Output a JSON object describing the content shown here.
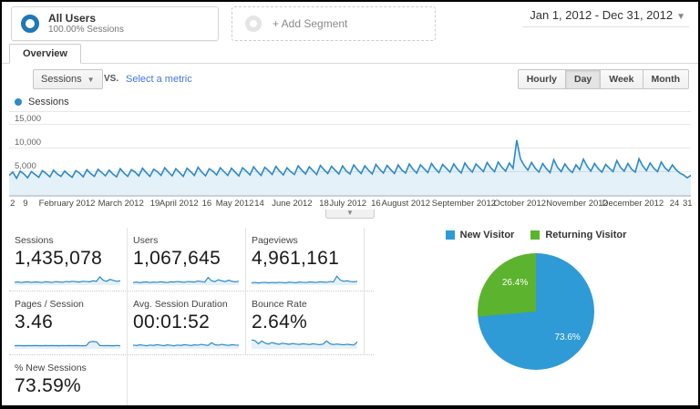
{
  "header": {
    "segment": {
      "title": "All Users",
      "subtitle": "100.00% Sessions"
    },
    "add_segment_label": "+ Add Segment",
    "date_range": "Jan 1, 2012 - Dec 31, 2012"
  },
  "tabs": {
    "overview": "Overview"
  },
  "controls": {
    "metric_selector": "Sessions",
    "vs_label": "VS.",
    "compare_link": "Select a metric",
    "granularity": [
      "Hourly",
      "Day",
      "Week",
      "Month"
    ],
    "granularity_active": "Day"
  },
  "legend": {
    "series_label": "Sessions"
  },
  "colors": {
    "line_blue": "#2d89c8",
    "pie_blue": "#2e9bd6",
    "pie_green": "#5cb32e",
    "link_blue": "#4374e0"
  },
  "chart_data": {
    "timeline": {
      "type": "line",
      "title": "Sessions",
      "granularity": "Day",
      "y_ticks": [
        "15,000",
        "10,000",
        "5,000"
      ],
      "ylim": [
        0,
        17400
      ],
      "x_range": [
        "Jan 1, 2012",
        "Dec 31, 2012"
      ],
      "x_labels": [
        {
          "t": "2",
          "p": 0.5
        },
        {
          "t": "9",
          "p": 2.4
        },
        {
          "t": "February 2012",
          "p": 8.5
        },
        {
          "t": "March 2012",
          "p": 16.4
        },
        {
          "t": "19",
          "p": 21.4
        },
        {
          "t": "April 2012",
          "p": 24.9
        },
        {
          "t": "16",
          "p": 29.0
        },
        {
          "t": "May 2012",
          "p": 33.1
        },
        {
          "t": "14",
          "p": 36.7
        },
        {
          "t": "June 2012",
          "p": 41.5
        },
        {
          "t": "18",
          "p": 46.2
        },
        {
          "t": "July 2012",
          "p": 49.7
        },
        {
          "t": "16",
          "p": 53.8
        },
        {
          "t": "August 2012",
          "p": 58.2
        },
        {
          "t": "September 2012",
          "p": 66.7
        },
        {
          "t": "October 2012",
          "p": 74.9
        },
        {
          "t": "November 2012",
          "p": 83.3
        },
        {
          "t": "December 2012",
          "p": 91.5
        },
        {
          "t": "24",
          "p": 97.6
        },
        {
          "t": "31",
          "p": 99.5
        }
      ],
      "values": [
        4100,
        4800,
        3500,
        5000,
        4400,
        3600,
        4900,
        4300,
        3700,
        5100,
        4500,
        3800,
        5200,
        4400,
        3900,
        5000,
        4300,
        3700,
        5100,
        4600,
        3800,
        5300,
        4500,
        3900,
        5400,
        4700,
        4000,
        5200,
        4400,
        3800,
        5500,
        4600,
        3900,
        5300,
        4800,
        4000,
        5600,
        4700,
        3900,
        5400,
        4900,
        4100,
        5700,
        4800,
        4000,
        5500,
        4700,
        3900,
        5600,
        4900,
        4100,
        5800,
        4800,
        4000,
        5500,
        5000,
        4200,
        5700,
        4900,
        4100,
        5600,
        4800,
        4000,
        5700,
        5000,
        4200,
        5900,
        4900,
        4100,
        5800,
        5100,
        4300,
        6000,
        5000,
        4200,
        5700,
        4900,
        4300,
        6100,
        5200,
        4400,
        5900,
        5100,
        4300,
        6200,
        5300,
        4500,
        6000,
        5200,
        4400,
        6100,
        5000,
        4400,
        6300,
        5300,
        4500,
        6100,
        5200,
        4400,
        6400,
        5400,
        4600,
        6200,
        5300,
        4500,
        6300,
        5200,
        4600,
        6500,
        5400,
        4600,
        6300,
        5500,
        4700,
        6600,
        5500,
        4700,
        6400,
        5600,
        4800,
        6500,
        5400,
        4600,
        6700,
        5600,
        4800,
        6500,
        5700,
        4900,
        6800,
        5700,
        4900,
        6900,
        5800,
        5000,
        6700,
        5600,
        11500,
        7600,
        6200,
        5200,
        6800,
        5600,
        4800,
        6600,
        5500,
        4700,
        7400,
        5800,
        4900,
        6500,
        5400,
        4700,
        6300,
        5300,
        7500,
        6000,
        5000,
        6600,
        5500,
        4800,
        6400,
        5600,
        4900,
        7200,
        5800,
        5000,
        6600,
        5400,
        4800,
        7600,
        6100,
        5100,
        6700,
        5600,
        4900,
        6900,
        5700,
        5000,
        6300,
        5300,
        4600,
        4200,
        3600,
        4100
      ]
    },
    "sparklines": {
      "sessions": [
        22,
        25,
        20,
        24,
        26,
        21,
        25,
        23,
        20,
        26,
        24,
        21,
        27,
        25,
        22,
        28,
        26,
        30,
        27,
        24,
        30,
        28,
        26,
        34,
        30,
        65,
        38,
        30,
        45,
        36,
        30,
        34
      ],
      "users": [
        20,
        24,
        19,
        23,
        25,
        20,
        24,
        22,
        26,
        23,
        20,
        26,
        24,
        28,
        25,
        22,
        28,
        26,
        24,
        32,
        28,
        24,
        60,
        34,
        28,
        42,
        34,
        28,
        38,
        30,
        26,
        30
      ],
      "pageviews": [
        18,
        21,
        17,
        20,
        22,
        18,
        21,
        19,
        22,
        20,
        18,
        23,
        21,
        19,
        24,
        22,
        20,
        25,
        23,
        21,
        26,
        24,
        22,
        28,
        25,
        70,
        40,
        30,
        34,
        28,
        26,
        30
      ],
      "pages_per_session": [
        25,
        26,
        25,
        24,
        26,
        25,
        26,
        25,
        24,
        26,
        25,
        26,
        25,
        24,
        26,
        25,
        26,
        25,
        26,
        25,
        24,
        26,
        55,
        58,
        56,
        26,
        25,
        26,
        25,
        24,
        26,
        25
      ],
      "avg_session_duration": [
        30,
        26,
        32,
        28,
        24,
        30,
        27,
        33,
        29,
        25,
        31,
        28,
        24,
        30,
        27,
        33,
        30,
        26,
        32,
        29,
        35,
        31,
        27,
        48,
        33,
        29,
        35,
        31,
        27,
        33,
        30,
        28
      ],
      "bounce_rate": [
        70,
        65,
        40,
        62,
        45,
        38,
        50,
        42,
        36,
        44,
        40,
        36,
        42,
        38,
        35,
        40,
        37,
        34,
        40,
        36,
        33,
        38,
        62,
        40,
        34,
        38,
        35,
        32,
        36,
        33,
        30,
        55
      ],
      "pct_new_sessions": [
        30,
        32,
        34,
        33,
        36,
        35,
        37,
        36,
        38,
        37,
        39,
        38,
        40,
        39,
        41,
        40,
        42,
        41,
        43,
        42,
        44,
        43,
        45,
        44,
        46,
        45,
        47,
        46,
        48,
        47,
        49,
        48
      ]
    },
    "pie": {
      "type": "pie",
      "legend": [
        "New Visitor",
        "Returning Visitor"
      ],
      "values": [
        73.6,
        26.4
      ],
      "labels": [
        "73.6%",
        "26.4%"
      ],
      "colors": [
        "#2e9bd6",
        "#5cb32e"
      ]
    }
  },
  "metrics": [
    {
      "label": "Sessions",
      "value": "1,435,078"
    },
    {
      "label": "Users",
      "value": "1,067,645"
    },
    {
      "label": "Pageviews",
      "value": "4,961,161"
    },
    {
      "label": "Pages / Session",
      "value": "3.46"
    },
    {
      "label": "Avg. Session Duration",
      "value": "00:01:52"
    },
    {
      "label": "Bounce Rate",
      "value": "2.64%"
    },
    {
      "label": "% New Sessions",
      "value": "73.59%"
    }
  ]
}
